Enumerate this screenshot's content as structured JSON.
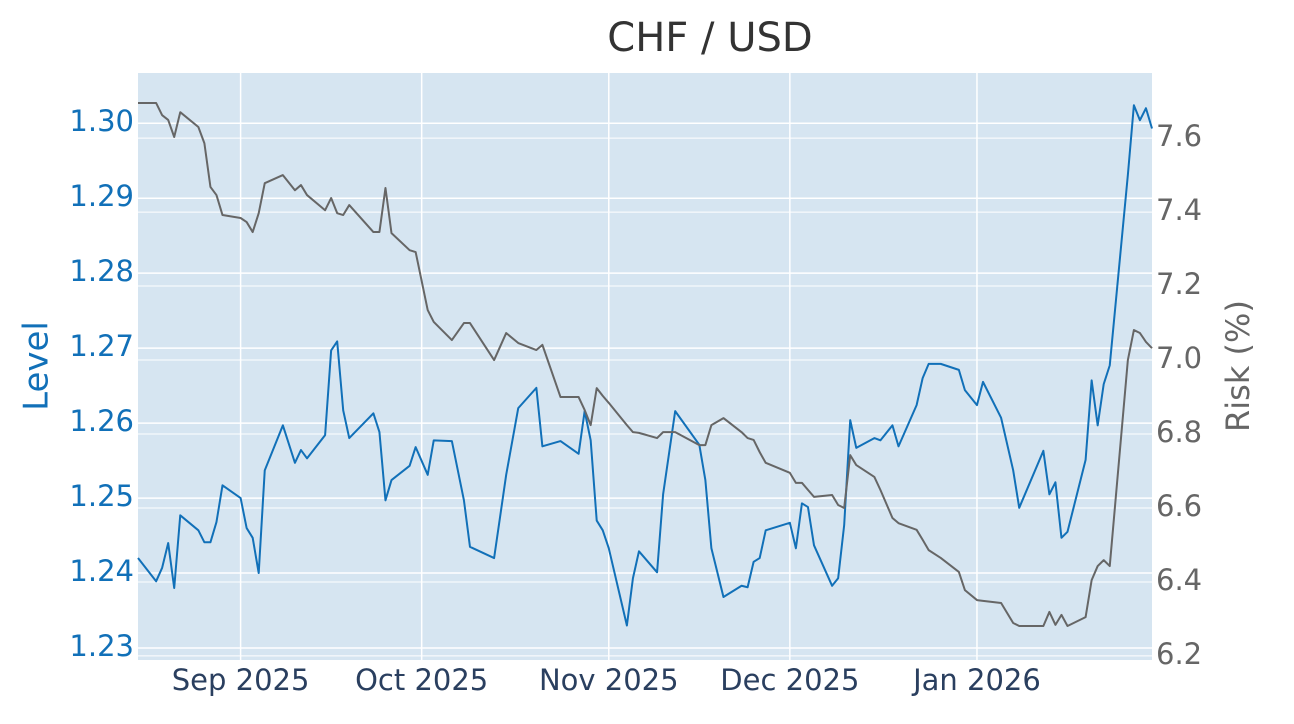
{
  "chart_data": {
    "type": "line",
    "title": "CHF / USD",
    "ylabel": "Level",
    "y2label": "Risk (%)",
    "x": [
      "2025-08-15",
      "2025-08-18",
      "2025-08-19",
      "2025-08-20",
      "2025-08-21",
      "2025-08-22",
      "2025-08-25",
      "2025-08-26",
      "2025-08-27",
      "2025-08-28",
      "2025-08-29",
      "2025-09-01",
      "2025-09-02",
      "2025-09-03",
      "2025-09-04",
      "2025-09-05",
      "2025-09-08",
      "2025-09-10",
      "2025-09-11",
      "2025-09-12",
      "2025-09-15",
      "2025-09-16",
      "2025-09-17",
      "2025-09-18",
      "2025-09-19",
      "2025-09-23",
      "2025-09-24",
      "2025-09-25",
      "2025-09-26",
      "2025-09-29",
      "2025-09-30",
      "2025-10-02",
      "2025-10-03",
      "2025-10-06",
      "2025-10-08",
      "2025-10-09",
      "2025-10-13",
      "2025-10-15",
      "2025-10-17",
      "2025-10-20",
      "2025-10-21",
      "2025-10-24",
      "2025-10-27",
      "2025-10-28",
      "2025-10-29",
      "2025-10-30",
      "2025-10-31",
      "2025-11-01",
      "2025-11-04",
      "2025-11-05",
      "2025-11-06",
      "2025-11-09",
      "2025-11-10",
      "2025-11-12",
      "2025-11-16",
      "2025-11-17",
      "2025-11-18",
      "2025-11-20",
      "2025-11-23",
      "2025-11-24",
      "2025-11-25",
      "2025-11-26",
      "2025-11-27",
      "2025-12-01",
      "2025-12-02",
      "2025-12-03",
      "2025-12-04",
      "2025-12-05",
      "2025-12-08",
      "2025-12-09",
      "2025-12-10",
      "2025-12-11",
      "2025-12-12",
      "2025-12-15",
      "2025-12-16",
      "2025-12-18",
      "2025-12-19",
      "2025-12-22",
      "2025-12-23",
      "2025-12-24",
      "2025-12-26",
      "2025-12-29",
      "2025-12-30",
      "2026-01-01",
      "2026-01-02",
      "2026-01-05",
      "2026-01-07",
      "2026-01-08",
      "2026-01-12",
      "2026-01-13",
      "2026-01-14",
      "2026-01-15",
      "2026-01-16",
      "2026-01-19",
      "2026-01-20",
      "2026-01-21",
      "2026-01-22",
      "2026-01-23",
      "2026-01-26",
      "2026-01-27",
      "2026-01-28",
      "2026-01-29",
      "2026-01-30"
    ],
    "series": [
      {
        "name": "Level",
        "color": "#1170b8",
        "axis": "y",
        "values": [
          1.242,
          1.2389,
          1.2407,
          1.244,
          1.238,
          1.2477,
          1.2457,
          1.2441,
          1.2441,
          1.2468,
          1.2517,
          1.25,
          1.246,
          1.2447,
          1.24,
          1.2537,
          1.2597,
          1.2547,
          1.2564,
          1.2553,
          1.2584,
          1.2697,
          1.2709,
          1.2617,
          1.258,
          1.2613,
          1.2588,
          1.2497,
          1.2524,
          1.2543,
          1.2568,
          1.2531,
          1.2577,
          1.2576,
          1.2497,
          1.2435,
          1.242,
          1.2531,
          1.262,
          1.2647,
          1.2569,
          1.2576,
          1.2559,
          1.2616,
          1.2577,
          1.247,
          1.2457,
          1.2433,
          1.233,
          1.2393,
          1.2429,
          1.2401,
          1.2505,
          1.2616,
          1.2571,
          1.2524,
          1.2433,
          1.2368,
          1.2383,
          1.2381,
          1.2415,
          1.242,
          1.2457,
          1.2467,
          1.2433,
          1.2493,
          1.2488,
          1.2437,
          1.2383,
          1.2393,
          1.2464,
          1.2604,
          1.2567,
          1.258,
          1.2577,
          1.2597,
          1.2569,
          1.2624,
          1.266,
          1.2679,
          1.2679,
          1.2671,
          1.2644,
          1.2624,
          1.2655,
          1.2607,
          1.2537,
          1.2487,
          1.2563,
          1.2505,
          1.2521,
          1.2447,
          1.2455,
          1.2551,
          1.2657,
          1.2597,
          1.2652,
          1.2677,
          1.2931,
          1.3024,
          1.3004,
          1.302,
          1.2993
        ]
      },
      {
        "name": "Risk (%)",
        "color": "#666666",
        "axis": "y2",
        "values": [
          7.695,
          7.695,
          7.662,
          7.649,
          7.603,
          7.67,
          7.63,
          7.586,
          7.468,
          7.446,
          7.392,
          7.384,
          7.373,
          7.346,
          7.397,
          7.478,
          7.5,
          7.459,
          7.473,
          7.446,
          7.405,
          7.438,
          7.397,
          7.392,
          7.419,
          7.346,
          7.346,
          7.465,
          7.343,
          7.297,
          7.292,
          7.135,
          7.103,
          7.054,
          7.1,
          7.1,
          7.0,
          7.073,
          7.046,
          7.027,
          7.041,
          6.9,
          6.9,
          6.865,
          6.824,
          6.924,
          6.903,
          6.884,
          6.824,
          6.805,
          6.803,
          6.789,
          6.805,
          6.805,
          6.77,
          6.77,
          6.824,
          6.843,
          6.805,
          6.789,
          6.784,
          6.751,
          6.722,
          6.695,
          6.668,
          6.668,
          6.649,
          6.63,
          6.635,
          6.608,
          6.6,
          6.743,
          6.716,
          6.684,
          6.649,
          6.573,
          6.559,
          6.541,
          6.514,
          6.486,
          6.465,
          6.427,
          6.378,
          6.351,
          6.349,
          6.343,
          6.289,
          6.281,
          6.281,
          6.319,
          6.284,
          6.311,
          6.281,
          6.305,
          6.405,
          6.443,
          6.459,
          6.443,
          7.0,
          7.081,
          7.073,
          7.049,
          7.032
        ]
      }
    ],
    "xlim": [
      "2025-08-15",
      "2026-01-30"
    ],
    "xticks": [
      {
        "value": "2025-09-01",
        "label": "Sep 2025"
      },
      {
        "value": "2025-10-01",
        "label": "Oct 2025"
      },
      {
        "value": "2025-11-01",
        "label": "Nov 2025"
      },
      {
        "value": "2025-12-01",
        "label": "Dec 2025"
      },
      {
        "value": "2026-01-01",
        "label": "Jan 2026"
      }
    ],
    "ylim": [
      1.2284,
      1.3067
    ],
    "yticks": [
      1.23,
      1.24,
      1.25,
      1.26,
      1.27,
      1.28,
      1.29,
      {
        "value": 1.3,
        "label": "1.30"
      }
    ],
    "y2lim": [
      6.189,
      7.776
    ],
    "y2ticks": [
      6.2,
      6.4,
      6.6,
      6.8,
      {
        "value": 7,
        "label": "7.0"
      },
      7.2,
      7.4,
      7.6
    ],
    "grid": true
  }
}
